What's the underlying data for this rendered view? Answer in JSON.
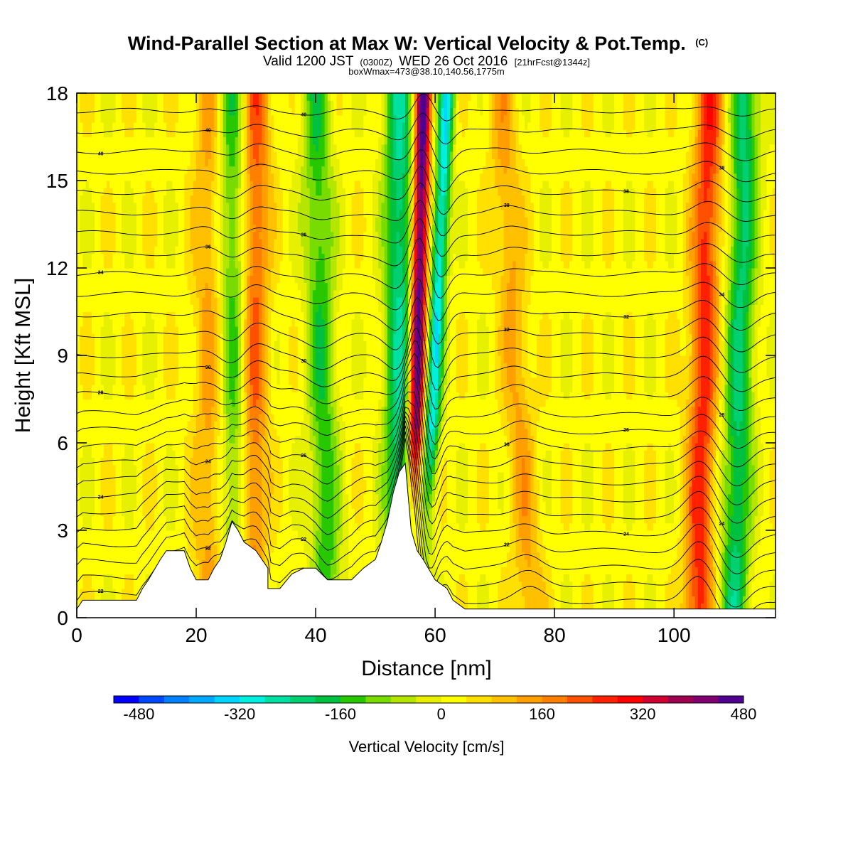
{
  "title": {
    "main": "Wind-Parallel Section at Max W: Vertical Velocity & Pot.Temp.",
    "main_suffix": "(C)",
    "valid_prefix": "Valid 1200 JST",
    "valid_zulu": "(0300Z)",
    "valid_date": "WED 26 Oct 2016",
    "forecast": "[21hrFcst@1344z]",
    "boxline": "boxWmax=473@38.10,140.56,1775m"
  },
  "chart_data": {
    "type": "heatmap",
    "xlabel": "Distance [nm]",
    "ylabel": "Height [Kft MSL]",
    "xlim": [
      0,
      117
    ],
    "ylim": [
      0,
      18
    ],
    "xticks": [
      "0",
      "20",
      "40",
      "60",
      "80",
      "100"
    ],
    "yticks": [
      "0",
      "3",
      "6",
      "9",
      "12",
      "15",
      "18"
    ],
    "colorbar": {
      "label": "Vertical Velocity [cm/s]",
      "ticks": [
        "-480",
        "-320",
        "-160",
        "0",
        "160",
        "320",
        "480"
      ],
      "min": -520,
      "step": 40,
      "colors": [
        "#0000ff",
        "#0048ff",
        "#0080ff",
        "#00a8ff",
        "#00d4ff",
        "#00f0e0",
        "#00e0a0",
        "#00d070",
        "#00c040",
        "#28c800",
        "#78dc00",
        "#b4e600",
        "#e6f000",
        "#ffff00",
        "#ffe000",
        "#ffc000",
        "#ffa000",
        "#ff8000",
        "#ff5000",
        "#ff2000",
        "#ff0000",
        "#d00030",
        "#a00050",
        "#800070",
        "#500090"
      ]
    },
    "updraft_columns": [
      {
        "x_bottom": 29,
        "x_top": 30,
        "peak_cm_s": 200
      },
      {
        "x_bottom": 56,
        "x_top": 58,
        "peak_cm_s": 473
      },
      {
        "x_bottom": 104,
        "x_top": 106,
        "peak_cm_s": 240
      },
      {
        "x_bottom": 22,
        "x_top": 22,
        "peak_cm_s": 110
      },
      {
        "x_bottom": 76,
        "x_top": 71,
        "peak_cm_s": 110
      }
    ],
    "downdraft_columns": [
      {
        "x_bottom": 58,
        "x_top": 62,
        "peak_cm_s": -330
      },
      {
        "x_bottom": 54,
        "x_top": 54,
        "peak_cm_s": -260
      },
      {
        "x_bottom": 110,
        "x_top": 112,
        "peak_cm_s": -230
      },
      {
        "x_bottom": 27,
        "x_top": 26,
        "peak_cm_s": -170
      },
      {
        "x_bottom": 42,
        "x_top": 40,
        "peak_cm_s": -170
      }
    ],
    "terrain_kft": [
      [
        0,
        0.3
      ],
      [
        1,
        0.6
      ],
      [
        10,
        0.6
      ],
      [
        11,
        1
      ],
      [
        12,
        1.3
      ],
      [
        14,
        2
      ],
      [
        15,
        2.3
      ],
      [
        18,
        2.3
      ],
      [
        19,
        1.7
      ],
      [
        20,
        1.3
      ],
      [
        22,
        1.3
      ],
      [
        23,
        1.7
      ],
      [
        24,
        2
      ],
      [
        25,
        2.6
      ],
      [
        26,
        3.3
      ],
      [
        27,
        3
      ],
      [
        28,
        2.6
      ],
      [
        30,
        2.3
      ],
      [
        32,
        1.7
      ],
      [
        32,
        1
      ],
      [
        34,
        1
      ],
      [
        36,
        1.5
      ],
      [
        38,
        1.7
      ],
      [
        40,
        1.7
      ],
      [
        42,
        1.3
      ],
      [
        46,
        1.3
      ],
      [
        48,
        1.7
      ],
      [
        50,
        2
      ],
      [
        51,
        2.6
      ],
      [
        52,
        3.3
      ],
      [
        53,
        4.3
      ],
      [
        54,
        5
      ],
      [
        55,
        5.3
      ],
      [
        56,
        3
      ],
      [
        57,
        2.3
      ],
      [
        58,
        2
      ],
      [
        60,
        1.3
      ],
      [
        62,
        1
      ],
      [
        63,
        0.6
      ],
      [
        65,
        0.3
      ],
      [
        117,
        0.3
      ]
    ],
    "theta_contours": [
      {
        "level": 22,
        "base_kft": 0.3
      },
      {
        "level": 22,
        "base_kft": 0.9
      },
      {
        "level": 22,
        "base_kft": 1.5
      },
      {
        "level": 22,
        "base_kft": 2.1
      },
      {
        "level": 24,
        "base_kft": 2.7
      },
      {
        "level": 24,
        "base_kft": 3.3
      },
      {
        "level": 24,
        "base_kft": 3.9
      },
      {
        "level": 24,
        "base_kft": 4.5
      },
      {
        "level": 26,
        "base_kft": 5.1
      },
      {
        "level": 26,
        "base_kft": 5.7
      },
      {
        "level": 26,
        "base_kft": 6.3
      },
      {
        "level": 28,
        "base_kft": 6.9
      },
      {
        "level": 28,
        "base_kft": 7.6
      },
      {
        "level": 30,
        "base_kft": 8.3
      },
      {
        "level": 30,
        "base_kft": 9.0
      },
      {
        "level": 32,
        "base_kft": 9.7
      },
      {
        "level": 32,
        "base_kft": 10.4
      },
      {
        "level": 34,
        "base_kft": 11.1
      },
      {
        "level": 34,
        "base_kft": 11.8
      },
      {
        "level": 36,
        "base_kft": 12.5
      },
      {
        "level": 36,
        "base_kft": 13.2
      },
      {
        "level": 38,
        "base_kft": 13.9
      },
      {
        "level": 38,
        "base_kft": 14.6
      },
      {
        "level": 38,
        "base_kft": 15.3
      },
      {
        "level": 40,
        "base_kft": 16.0
      },
      {
        "level": 40,
        "base_kft": 16.7
      },
      {
        "level": 40,
        "base_kft": 17.4
      }
    ]
  }
}
